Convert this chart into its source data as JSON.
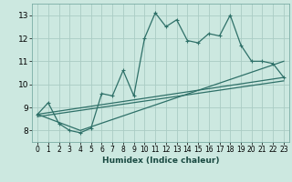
{
  "title": "",
  "xlabel": "Humidex (Indice chaleur)",
  "bg_color": "#cce8e0",
  "grid_color": "#aaccc4",
  "line_color": "#2e7068",
  "xlim": [
    -0.5,
    23.5
  ],
  "ylim": [
    7.5,
    13.5
  ],
  "xticks": [
    0,
    1,
    2,
    3,
    4,
    5,
    6,
    7,
    8,
    9,
    10,
    11,
    12,
    13,
    14,
    15,
    16,
    17,
    18,
    19,
    20,
    21,
    22,
    23
  ],
  "yticks": [
    8,
    9,
    10,
    11,
    12,
    13
  ],
  "series1_x": [
    0,
    1,
    2,
    3,
    4,
    5,
    6,
    7,
    8,
    9,
    10,
    11,
    12,
    13,
    14,
    15,
    16,
    17,
    18,
    19,
    20,
    21,
    22,
    23
  ],
  "series1_y": [
    8.7,
    9.2,
    8.3,
    8.0,
    7.9,
    8.1,
    9.6,
    9.5,
    10.6,
    9.5,
    12.0,
    13.1,
    12.5,
    12.8,
    11.9,
    11.8,
    12.2,
    12.1,
    13.0,
    11.7,
    11.0,
    11.0,
    10.9,
    10.3
  ],
  "series2_x": [
    0,
    23
  ],
  "series2_y": [
    8.7,
    10.3
  ],
  "series3_x": [
    0,
    4,
    23
  ],
  "series3_y": [
    8.7,
    8.0,
    11.0
  ],
  "series4_x": [
    0,
    23
  ],
  "series4_y": [
    8.6,
    10.15
  ]
}
